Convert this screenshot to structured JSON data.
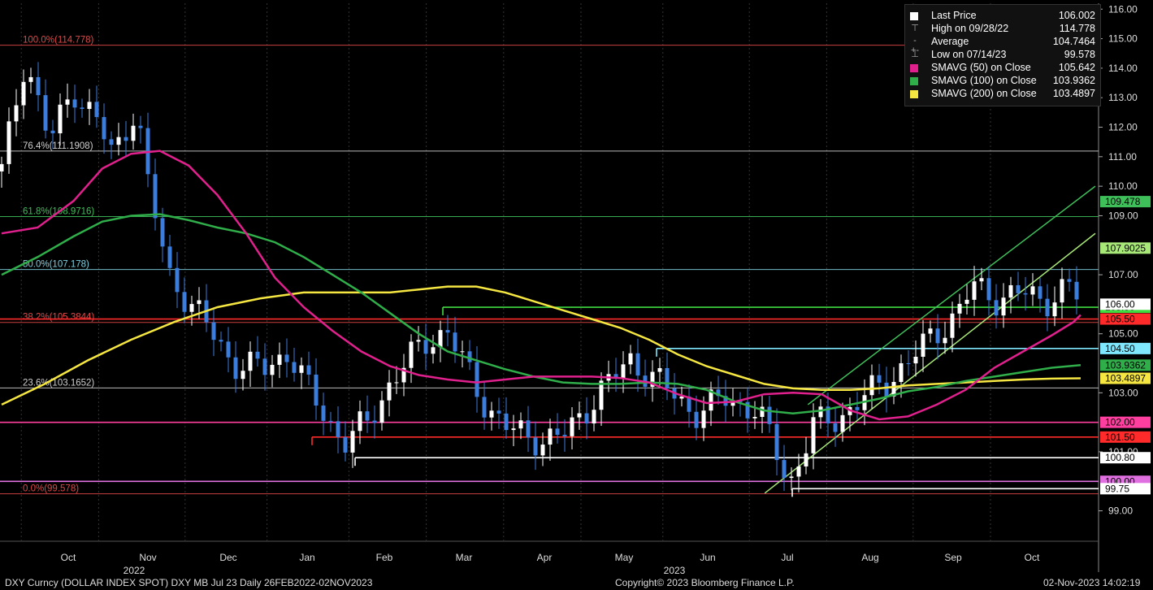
{
  "legend": {
    "last_price": {
      "label": "Last Price",
      "value": "106.002"
    },
    "high": {
      "label": "High on 09/28/22",
      "value": "114.778"
    },
    "average": {
      "label": "Average",
      "value": "104.7464"
    },
    "low": {
      "label": "Low on 07/14/23",
      "value": "99.578"
    },
    "sma50": {
      "label": "SMAVG (50)  on Close",
      "value": "105.642"
    },
    "sma100": {
      "label": "SMAVG (100)  on Close",
      "value": "103.9362"
    },
    "sma200": {
      "label": "SMAVG (200)  on Close",
      "value": "103.4897"
    }
  },
  "footer": {
    "left": "DXY Curncy (DOLLAR INDEX SPOT) DXY MB Jul 23  Daily 26FEB2022-02NOV2023",
    "center": "Copyright© 2023 Bloomberg Finance L.P.",
    "right": "02-Nov-2023 14:02:19"
  },
  "colors": {
    "background": "#000000",
    "candle_up": "#ffffff",
    "candle_down": "#3b7ddd",
    "sma50": "#e0208c",
    "sma100": "#2fae4a",
    "sma200": "#f5e642",
    "fib100": "#e04848",
    "fib764": "#cfcfcf",
    "fib618": "#3fbf5a",
    "fib50": "#7fd0e0",
    "fib382": "#e04848",
    "fib236": "#cfcfcf",
    "fib0": "#e04848"
  },
  "chart_data": {
    "type": "candlestick",
    "instrument": "DXY Curncy (DOLLAR INDEX SPOT)",
    "ylim": [
      98.3,
      116.2
    ],
    "y_ticks": [
      99.0,
      101.0,
      103.0,
      105.0,
      107.0,
      109.0,
      110.0,
      111.0,
      112.0,
      113.0,
      114.0,
      115.0,
      116.0
    ],
    "x_month_labels": [
      "Oct",
      "Nov",
      "Dec",
      "Jan",
      "Feb",
      "Mar",
      "Apr",
      "May",
      "Jun",
      "Jul",
      "Aug",
      "Sep",
      "Oct"
    ],
    "x_year_labels": [
      "2022",
      "2023"
    ],
    "fibonacci_levels": [
      {
        "label": "100.0%(114.778)",
        "value": 114.778
      },
      {
        "label": "76.4%(111.1908)",
        "value": 111.1908
      },
      {
        "label": "61.8%(108.9716)",
        "value": 108.9716
      },
      {
        "label": "50.0%(107.178)",
        "value": 107.178
      },
      {
        "label": "38.2%(105.3844)",
        "value": 105.3844
      },
      {
        "label": "23.6%(103.1652)",
        "value": 103.1652
      },
      {
        "label": "0.0%(99.578)",
        "value": 99.578
      }
    ],
    "horizontal_levels": [
      {
        "value": 105.9,
        "label": "105.90",
        "color": "#3fdc3f"
      },
      {
        "value": 105.5,
        "label": "105.50",
        "color": "#ff2b2b"
      },
      {
        "value": 104.5,
        "label": "104.50",
        "color": "#7fe8ff"
      },
      {
        "value": 102.0,
        "label": "102.00",
        "color": "#ff3fa0"
      },
      {
        "value": 101.5,
        "label": "101.50",
        "color": "#ff2b2b"
      },
      {
        "value": 100.8,
        "label": "100.80",
        "color": "#ffffff"
      },
      {
        "value": 100.0,
        "label": "100.00",
        "color": "#e070e0"
      },
      {
        "value": 99.75,
        "label": "99.75",
        "color": "#ffffff"
      }
    ],
    "axis_tags": [
      {
        "value": 109.478,
        "label": "109.478",
        "color": "#3fbf5a"
      },
      {
        "value": 107.9025,
        "label": "107.9025",
        "color": "#a8e878"
      },
      {
        "value": 103.9362,
        "label": "103.9362",
        "color": "#2fae4a"
      },
      {
        "value": 103.4897,
        "label": "103.4897",
        "color": "#f5e642"
      },
      {
        "value": 106.002,
        "label": "106.00",
        "color": "#ffffff"
      }
    ],
    "sma50": [
      [
        0,
        108.4
      ],
      [
        5,
        108.6
      ],
      [
        10,
        109.5
      ],
      [
        14,
        110.6
      ],
      [
        18,
        111.1
      ],
      [
        22,
        111.2
      ],
      [
        26,
        110.7
      ],
      [
        30,
        109.7
      ],
      [
        34,
        108.4
      ],
      [
        38,
        106.9
      ],
      [
        42,
        105.9
      ],
      [
        46,
        105.1
      ],
      [
        50,
        104.4
      ],
      [
        54,
        103.9
      ],
      [
        58,
        103.6
      ],
      [
        62,
        103.45
      ],
      [
        66,
        103.35
      ],
      [
        70,
        103.45
      ],
      [
        74,
        103.55
      ],
      [
        78,
        103.55
      ],
      [
        82,
        103.55
      ],
      [
        86,
        103.5
      ],
      [
        90,
        103.35
      ],
      [
        94,
        102.95
      ],
      [
        98,
        102.65
      ],
      [
        102,
        102.7
      ],
      [
        106,
        102.95
      ],
      [
        110,
        103.0
      ],
      [
        114,
        102.95
      ],
      [
        118,
        102.4
      ],
      [
        122,
        102.1
      ],
      [
        126,
        102.2
      ],
      [
        130,
        102.6
      ],
      [
        134,
        103.1
      ],
      [
        138,
        103.85
      ],
      [
        142,
        104.4
      ],
      [
        146,
        104.95
      ],
      [
        149,
        105.4
      ],
      [
        150,
        105.64
      ]
    ],
    "sma100": [
      [
        0,
        107.0
      ],
      [
        5,
        107.6
      ],
      [
        10,
        108.3
      ],
      [
        14,
        108.8
      ],
      [
        18,
        109.0
      ],
      [
        22,
        109.05
      ],
      [
        26,
        108.85
      ],
      [
        30,
        108.6
      ],
      [
        34,
        108.4
      ],
      [
        38,
        108.1
      ],
      [
        42,
        107.6
      ],
      [
        46,
        107.0
      ],
      [
        50,
        106.4
      ],
      [
        54,
        105.7
      ],
      [
        58,
        105.0
      ],
      [
        62,
        104.4
      ],
      [
        66,
        104.1
      ],
      [
        70,
        103.8
      ],
      [
        74,
        103.55
      ],
      [
        78,
        103.35
      ],
      [
        82,
        103.3
      ],
      [
        86,
        103.3
      ],
      [
        90,
        103.35
      ],
      [
        94,
        103.3
      ],
      [
        98,
        103.1
      ],
      [
        102,
        102.7
      ],
      [
        106,
        102.4
      ],
      [
        110,
        102.3
      ],
      [
        114,
        102.4
      ],
      [
        118,
        102.6
      ],
      [
        122,
        102.8
      ],
      [
        126,
        103.05
      ],
      [
        130,
        103.2
      ],
      [
        134,
        103.4
      ],
      [
        138,
        103.55
      ],
      [
        142,
        103.7
      ],
      [
        146,
        103.85
      ],
      [
        150,
        103.94
      ]
    ],
    "sma200": [
      [
        0,
        102.6
      ],
      [
        6,
        103.3
      ],
      [
        12,
        104.1
      ],
      [
        18,
        104.8
      ],
      [
        24,
        105.4
      ],
      [
        30,
        105.9
      ],
      [
        36,
        106.2
      ],
      [
        42,
        106.4
      ],
      [
        48,
        106.4
      ],
      [
        54,
        106.4
      ],
      [
        58,
        106.5
      ],
      [
        62,
        106.6
      ],
      [
        66,
        106.6
      ],
      [
        70,
        106.4
      ],
      [
        74,
        106.1
      ],
      [
        78,
        105.8
      ],
      [
        82,
        105.5
      ],
      [
        86,
        105.2
      ],
      [
        90,
        104.8
      ],
      [
        94,
        104.3
      ],
      [
        98,
        103.9
      ],
      [
        102,
        103.6
      ],
      [
        106,
        103.3
      ],
      [
        110,
        103.15
      ],
      [
        114,
        103.1
      ],
      [
        118,
        103.1
      ],
      [
        122,
        103.15
      ],
      [
        126,
        103.25
      ],
      [
        130,
        103.3
      ],
      [
        134,
        103.35
      ],
      [
        138,
        103.4
      ],
      [
        142,
        103.45
      ],
      [
        146,
        103.48
      ],
      [
        150,
        103.49
      ]
    ],
    "trend_lines": [
      {
        "from": [
          106,
          99.6
        ],
        "to": [
          152,
          108.4
        ],
        "color": "#a8e878"
      },
      {
        "from": [
          112,
          102.6
        ],
        "to": [
          152,
          110.0
        ],
        "color": "#3fbf5a"
      }
    ],
    "last_price": 106.002,
    "high": 114.778,
    "average": 104.7464,
    "low": 99.578
  }
}
